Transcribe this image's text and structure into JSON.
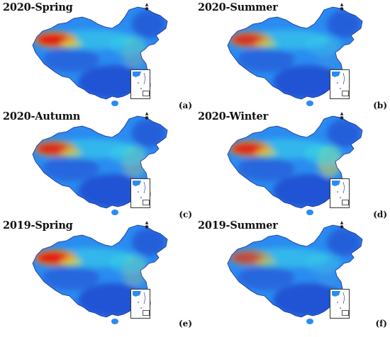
{
  "panels": [
    {
      "title": "2020-Spring",
      "label": "(a)",
      "hot": 1.0,
      "east": 0.25
    },
    {
      "title": "2020-Summer",
      "label": "(b)",
      "hot": 0.8,
      "east": 0.05
    },
    {
      "title": "2020-Autumn",
      "label": "(c)",
      "hot": 0.85,
      "east": 0.35
    },
    {
      "title": "2020-Winter",
      "label": "(d)",
      "hot": 0.9,
      "east": 0.6
    },
    {
      "title": "2019-Spring",
      "label": "(e)",
      "hot": 1.0,
      "east": 0.3
    },
    {
      "title": "2019-Summer",
      "label": "(f)",
      "hot": 0.6,
      "east": 0.05
    }
  ],
  "colors": {
    "low": "#1e3cc8",
    "mid": "#2a8cf0",
    "cyan": "#38d8e8",
    "yellow": "#e8e040",
    "orange": "#f08a20",
    "high": "#e01818",
    "coast": "#1a2a9a"
  }
}
